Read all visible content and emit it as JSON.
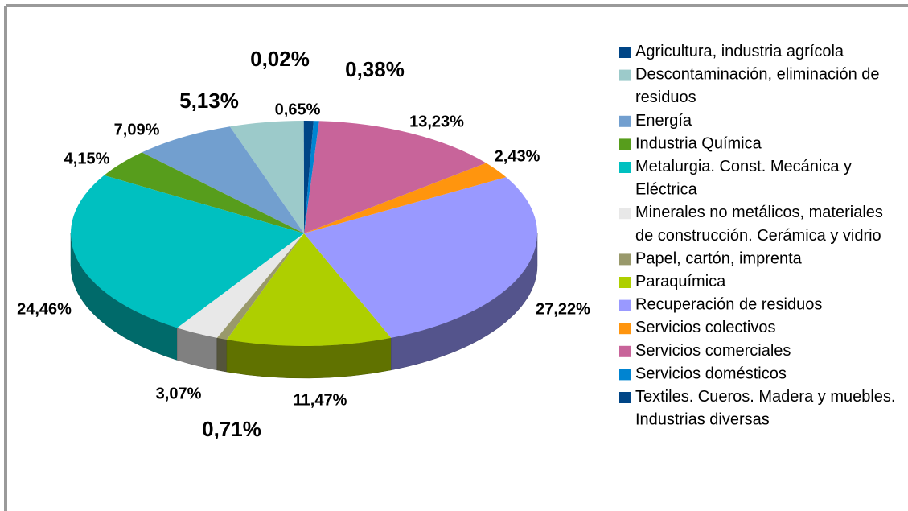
{
  "chart_data": {
    "type": "pie",
    "categories": [
      "Agricultura, industria agrícola",
      "Descontaminación, eliminación de residuos",
      "Energía",
      "Industria Química",
      "Metalurgia. Const. Mecánica y Eléctrica",
      "Minerales no metálicos, materiales de construcción. Cerámica y vidrio",
      "Papel, cartón, imprenta",
      "Paraquímica",
      "Recuperación de residuos",
      "Servicios colectivos",
      "Servicios comerciales",
      "Servicios domésticos",
      "Textiles. Cueros. Madera y muebles. Industrias diversas"
    ],
    "values": [
      0.02,
      5.13,
      7.09,
      4.15,
      24.46,
      3.07,
      0.71,
      11.47,
      27.22,
      2.43,
      13.23,
      0.38,
      0.65
    ],
    "value_labels": [
      "0,02%",
      "5,13%",
      "7,09%",
      "4,15%",
      "24,46%",
      "3,07%",
      "0,71%",
      "11,47%",
      "27,22%",
      "2,43%",
      "13,23%",
      "0,38%",
      "0,65%"
    ],
    "colors": [
      "#004586",
      "#9ccaca",
      "#729fcf",
      "#579d1c",
      "#00c0c0",
      "#e8e8e8",
      "#99996b",
      "#aecf00",
      "#9999ff",
      "#ff950e",
      "#c8649a",
      "#0084d1",
      "#004586"
    ],
    "legend": "right"
  }
}
